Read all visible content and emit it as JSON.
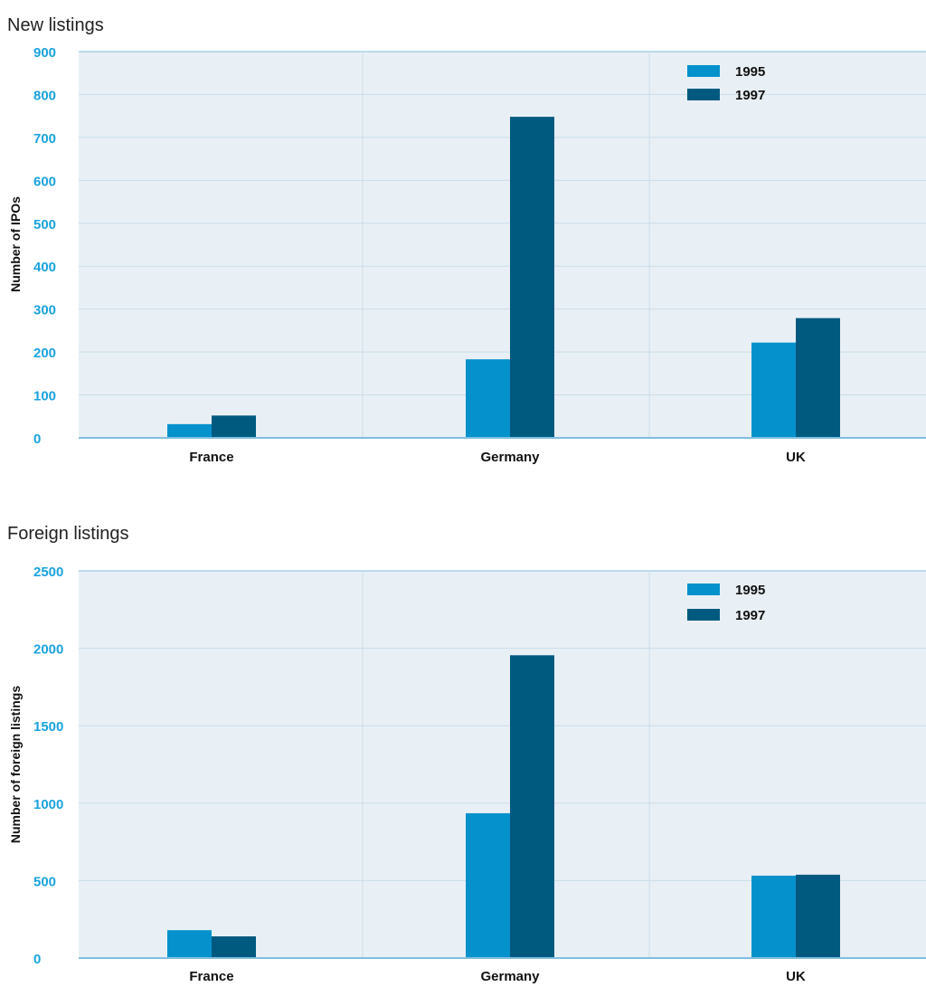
{
  "chart_data": [
    {
      "type": "bar",
      "title": "New listings",
      "ylabel": "Number of IPOs",
      "xlabel": "",
      "categories": [
        "France",
        "Germany",
        "UK"
      ],
      "ylim": [
        0,
        900
      ],
      "yticks": [
        "0",
        "100",
        "200",
        "300",
        "400",
        "500",
        "600",
        "700",
        "800",
        "900"
      ],
      "series": [
        {
          "name": "1995",
          "values": [
            32,
            183,
            222
          ]
        },
        {
          "name": "1997",
          "values": [
            52,
            748,
            279
          ]
        }
      ],
      "grid": true,
      "legend": "top-right"
    },
    {
      "type": "bar",
      "title": "Foreign listings",
      "ylabel": "Number of foreign listings",
      "xlabel": "",
      "categories": [
        "France",
        "Germany",
        "UK"
      ],
      "ylim": [
        0,
        2500
      ],
      "yticks": [
        "0",
        "500",
        "1000",
        "1500",
        "2000",
        "2500"
      ],
      "series": [
        {
          "name": "1995",
          "values": [
            180,
            935,
            532
          ]
        },
        {
          "name": "1997",
          "values": [
            140,
            1955,
            538
          ]
        }
      ],
      "grid": true,
      "legend": "top-right"
    }
  ],
  "colors": {
    "series_1995": "#0592cc",
    "series_1997": "#005a7f",
    "plot_background": "#e9f0f5",
    "gridline": "#c9dce9",
    "axis_line": "#7fbfe0",
    "tick_text": "#1aa3dc"
  }
}
